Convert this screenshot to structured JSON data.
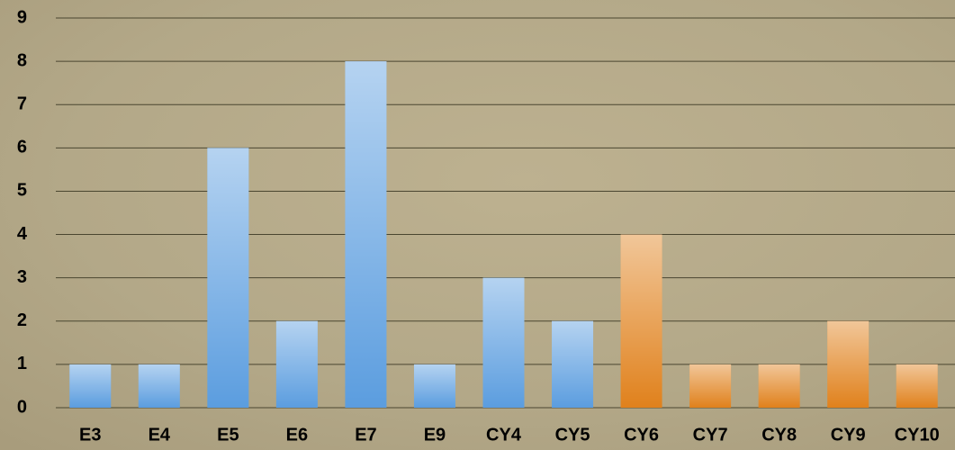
{
  "chart_data": {
    "type": "bar",
    "categories": [
      "E3",
      "E4",
      "E5",
      "E6",
      "E7",
      "E9",
      "CY4",
      "CY5",
      "CY6",
      "CY7",
      "CY8",
      "CY9",
      "CY10"
    ],
    "values": [
      1,
      1,
      6,
      2,
      8,
      1,
      3,
      2,
      4,
      1,
      1,
      2,
      1
    ],
    "colors": [
      "#5b9ddf",
      "#5b9ddf",
      "#5b9ddf",
      "#5b9ddf",
      "#5b9ddf",
      "#5b9ddf",
      "#5b9ddf",
      "#5b9ddf",
      "#e0811c",
      "#e0811c",
      "#e0811c",
      "#e0811c",
      "#e0811c"
    ],
    "ylim": [
      0,
      9
    ],
    "yticks": [
      0,
      1,
      2,
      3,
      4,
      5,
      6,
      7,
      8,
      9
    ],
    "grid": true
  }
}
